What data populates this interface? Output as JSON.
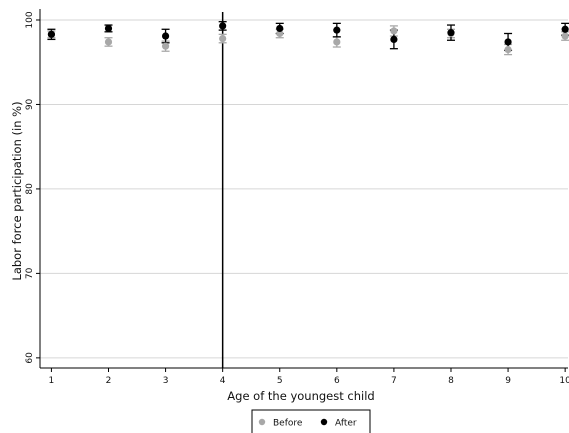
{
  "chart_data": {
    "type": "scatter",
    "xlabel": "Age of the youngest child",
    "ylabel": "Labor force participation (in %)",
    "x": [
      1,
      2,
      3,
      4,
      5,
      6,
      7,
      8,
      9,
      10
    ],
    "xticks": [
      "1",
      "2",
      "3",
      "4",
      "5",
      "6",
      "7",
      "8",
      "9",
      "10"
    ],
    "yticks": [
      60,
      70,
      80,
      90,
      100
    ],
    "xlim": [
      0.8,
      10.05
    ],
    "ylim": [
      58.8,
      101.3
    ],
    "grid": "horizontal",
    "reference_line_x": 4,
    "legend_placement": "bottom-center",
    "series": [
      {
        "name": "Before",
        "color": "#a8a8a8",
        "values": [
          98.3,
          97.4,
          96.9,
          97.8,
          98.4,
          97.4,
          98.7,
          98.4,
          96.5,
          98.1
        ],
        "ci_low": [
          97.9,
          96.9,
          96.3,
          97.3,
          97.9,
          96.8,
          98.1,
          97.9,
          95.9,
          97.6
        ],
        "ci_high": [
          98.7,
          97.9,
          97.5,
          98.3,
          98.9,
          98.0,
          99.3,
          98.9,
          97.1,
          98.6
        ]
      },
      {
        "name": "After",
        "color": "#000000",
        "values": [
          98.3,
          99.0,
          98.1,
          99.3,
          99.0,
          98.8,
          97.7,
          98.5,
          97.4,
          98.9
        ],
        "ci_low": [
          97.7,
          98.6,
          97.3,
          98.8,
          98.4,
          98.0,
          96.6,
          97.6,
          96.4,
          98.2
        ],
        "ci_high": [
          98.9,
          99.4,
          98.9,
          99.8,
          99.6,
          99.6,
          98.8,
          99.4,
          98.4,
          99.6
        ]
      }
    ]
  }
}
